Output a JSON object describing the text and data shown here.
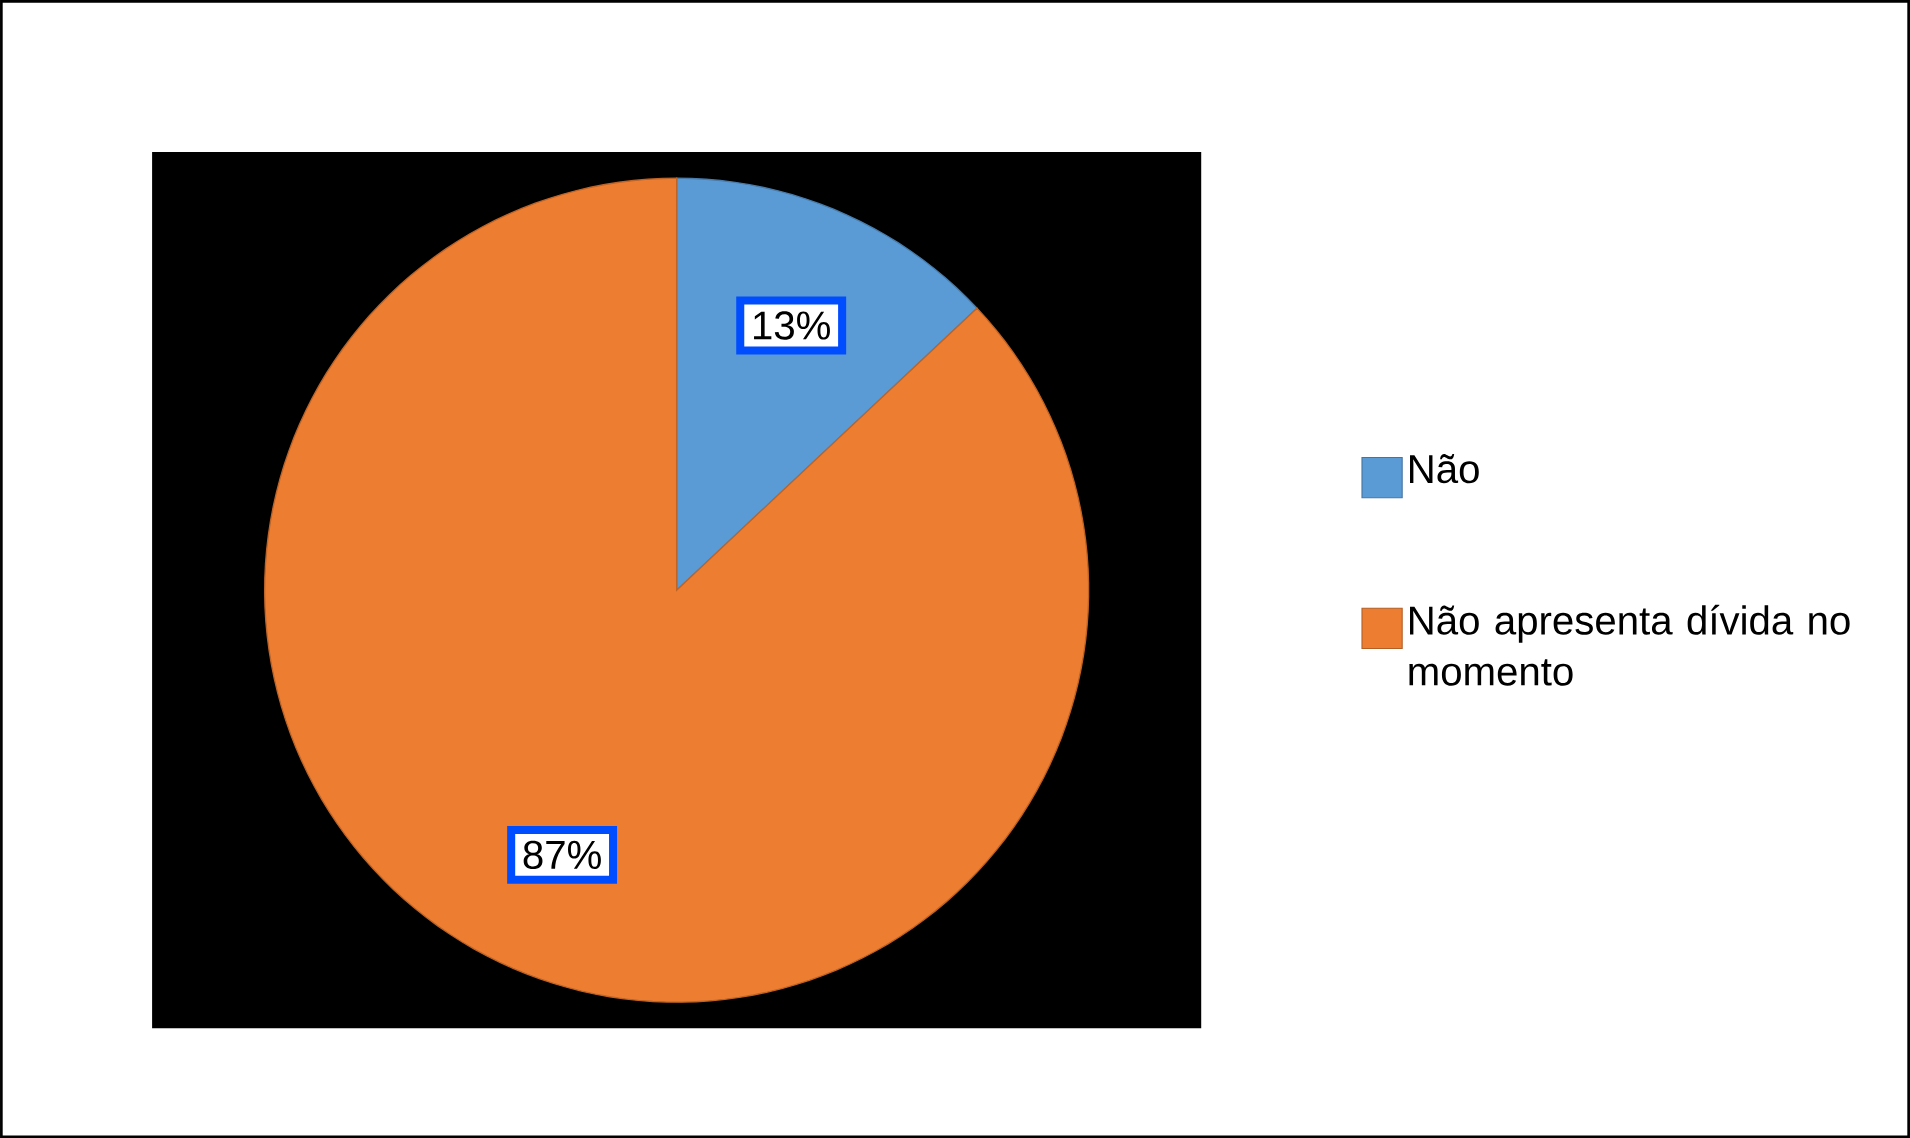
{
  "chart_data": {
    "type": "pie",
    "categories": [
      "Não",
      "Não apresenta dívida no momento"
    ],
    "values": [
      13,
      87
    ],
    "colors": [
      "#5b9bd5",
      "#ed7d31"
    ],
    "value_labels": [
      "13%",
      "87%"
    ],
    "legend": "right"
  }
}
